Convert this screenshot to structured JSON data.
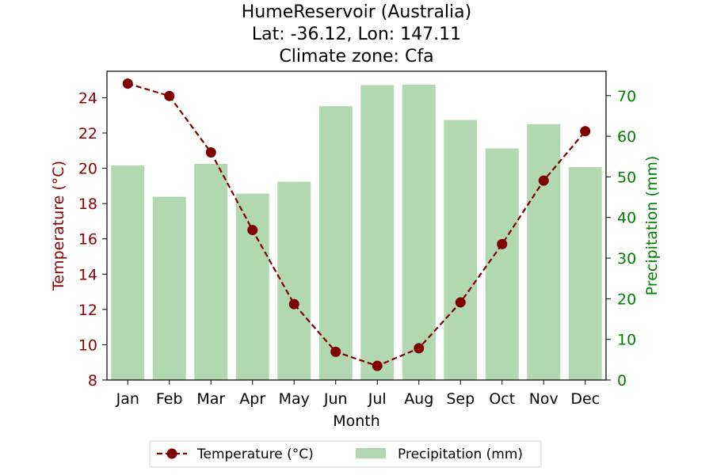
{
  "chart_data": {
    "type": "bar+line",
    "title_lines": [
      "HumeReservoir (Australia)",
      "Lat: -36.12, Lon: 147.11",
      "Climate zone: Cfa"
    ],
    "xlabel": "Month",
    "ylabel_left": "Temperature (°C)",
    "ylabel_right": "Precipitation (mm)",
    "categories": [
      "Jan",
      "Feb",
      "Mar",
      "Apr",
      "May",
      "Jun",
      "Jul",
      "Aug",
      "Sep",
      "Oct",
      "Nov",
      "Dec"
    ],
    "series": [
      {
        "name": "Temperature (°C)",
        "kind": "line",
        "axis": "left",
        "color": "#800000",
        "values": [
          24.8,
          24.1,
          20.9,
          16.5,
          12.3,
          9.6,
          8.8,
          9.8,
          12.4,
          15.7,
          19.3,
          22.1
        ]
      },
      {
        "name": "Precipitation (mm)",
        "kind": "bar",
        "axis": "right",
        "color": "#b2d8b2",
        "values": [
          52.8,
          45.1,
          53.2,
          45.9,
          48.8,
          67.4,
          72.6,
          72.7,
          64.0,
          57.0,
          63.0,
          52.4
        ]
      }
    ],
    "ylim_left": [
      8,
      25.5
    ],
    "ylim_right": [
      0,
      76
    ],
    "yticks_left": [
      8,
      10,
      12,
      14,
      16,
      18,
      20,
      22,
      24
    ],
    "yticks_right": [
      0,
      10,
      20,
      30,
      40,
      50,
      60,
      70
    ],
    "left_axis_color": "#8b0000",
    "right_axis_color": "#008000",
    "grid": false,
    "legend_position": "bottom-center"
  }
}
